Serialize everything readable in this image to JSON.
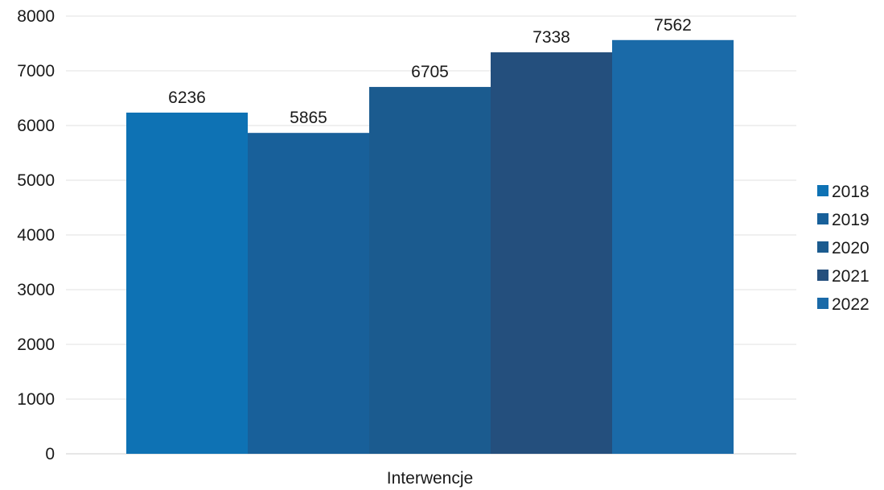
{
  "chart_data": {
    "type": "bar",
    "title": "",
    "xlabel": "",
    "ylabel": "",
    "categories": [
      "Interwencje"
    ],
    "ylim": [
      0,
      8000
    ],
    "yticks": [
      "0",
      "1000",
      "2000",
      "3000",
      "4000",
      "5000",
      "6000",
      "7000",
      "8000"
    ],
    "grid": true,
    "legend_position": "right",
    "series": [
      {
        "name": "2018",
        "values": [
          6236
        ],
        "color": "#0e72b4"
      },
      {
        "name": "2019",
        "values": [
          5865
        ],
        "color": "#18609a"
      },
      {
        "name": "2020",
        "values": [
          6705
        ],
        "color": "#1b5b8f"
      },
      {
        "name": "2021",
        "values": [
          7338
        ],
        "color": "#244f7d"
      },
      {
        "name": "2022",
        "values": [
          7562
        ],
        "color": "#1a6aa8"
      }
    ]
  }
}
